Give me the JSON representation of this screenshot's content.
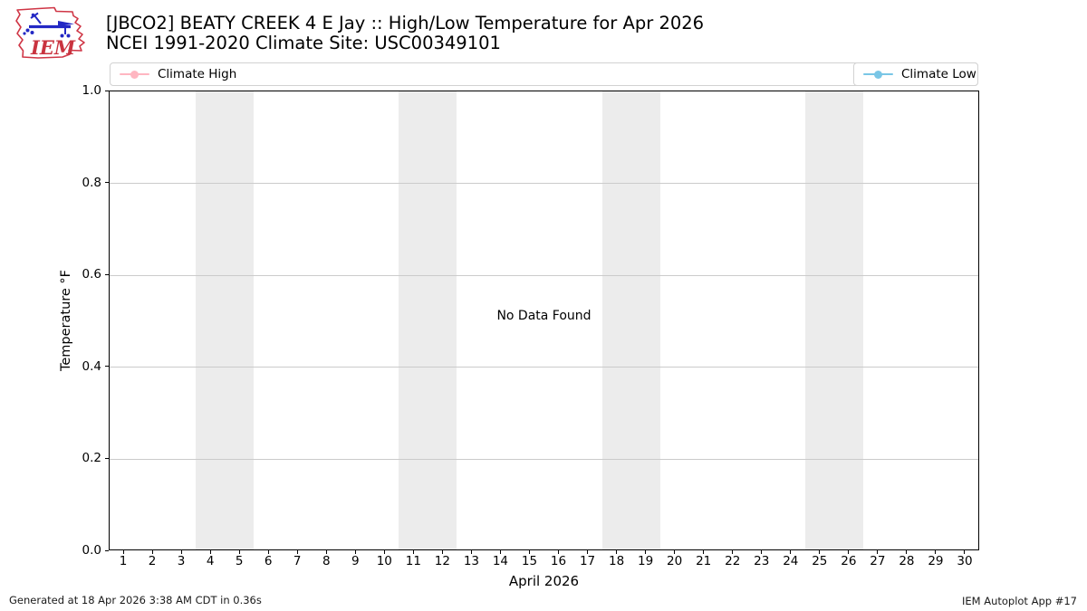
{
  "header": {
    "logo_text": "IEM",
    "title": "[JBCO2] BEATY CREEK 4 E Jay :: High/Low Temperature for Apr 2026",
    "subtitle": "NCEI 1991-2020 Climate Site: USC00349101"
  },
  "legend": {
    "high": {
      "label": "Climate High",
      "color": "#ffb6c1"
    },
    "low": {
      "label": "Climate Low",
      "color": "#79c6e6"
    }
  },
  "chart_data": {
    "type": "line",
    "title": "[JBCO2] BEATY CREEK 4 E Jay :: High/Low Temperature for Apr 2026",
    "subtitle": "NCEI 1991-2020 Climate Site: USC00349101",
    "xlabel": "April 2026",
    "ylabel": "Temperature °F",
    "xlim": [
      0.5,
      30.5
    ],
    "ylim": [
      0.0,
      1.0
    ],
    "xticks": [
      1,
      2,
      3,
      4,
      5,
      6,
      7,
      8,
      9,
      10,
      11,
      12,
      13,
      14,
      15,
      16,
      17,
      18,
      19,
      20,
      21,
      22,
      23,
      24,
      25,
      26,
      27,
      28,
      29,
      30
    ],
    "ytick_values": [
      0.0,
      0.2,
      0.4,
      0.6,
      0.8,
      1.0
    ],
    "ytick_labels": [
      "0.0",
      "0.2",
      "0.4",
      "0.6",
      "0.8",
      "1.0"
    ],
    "grid": true,
    "grid_color": "#cbcbcb",
    "band_color": "#ececec",
    "weekend_bands": [
      [
        3.5,
        5.5
      ],
      [
        10.5,
        12.5
      ],
      [
        17.5,
        19.5
      ],
      [
        24.5,
        26.5
      ]
    ],
    "legend_position": "top, spanning plot width; Climate High left, Climate Low right",
    "series": [
      {
        "name": "Climate High",
        "color": "#ffb6c1",
        "values": []
      },
      {
        "name": "Climate Low",
        "color": "#79c6e6",
        "values": []
      }
    ],
    "annotation": "No Data Found"
  },
  "footer": {
    "left": "Generated at 18 Apr 2026 3:38 AM CDT in 0.36s",
    "right": "IEM Autoplot App #17"
  }
}
